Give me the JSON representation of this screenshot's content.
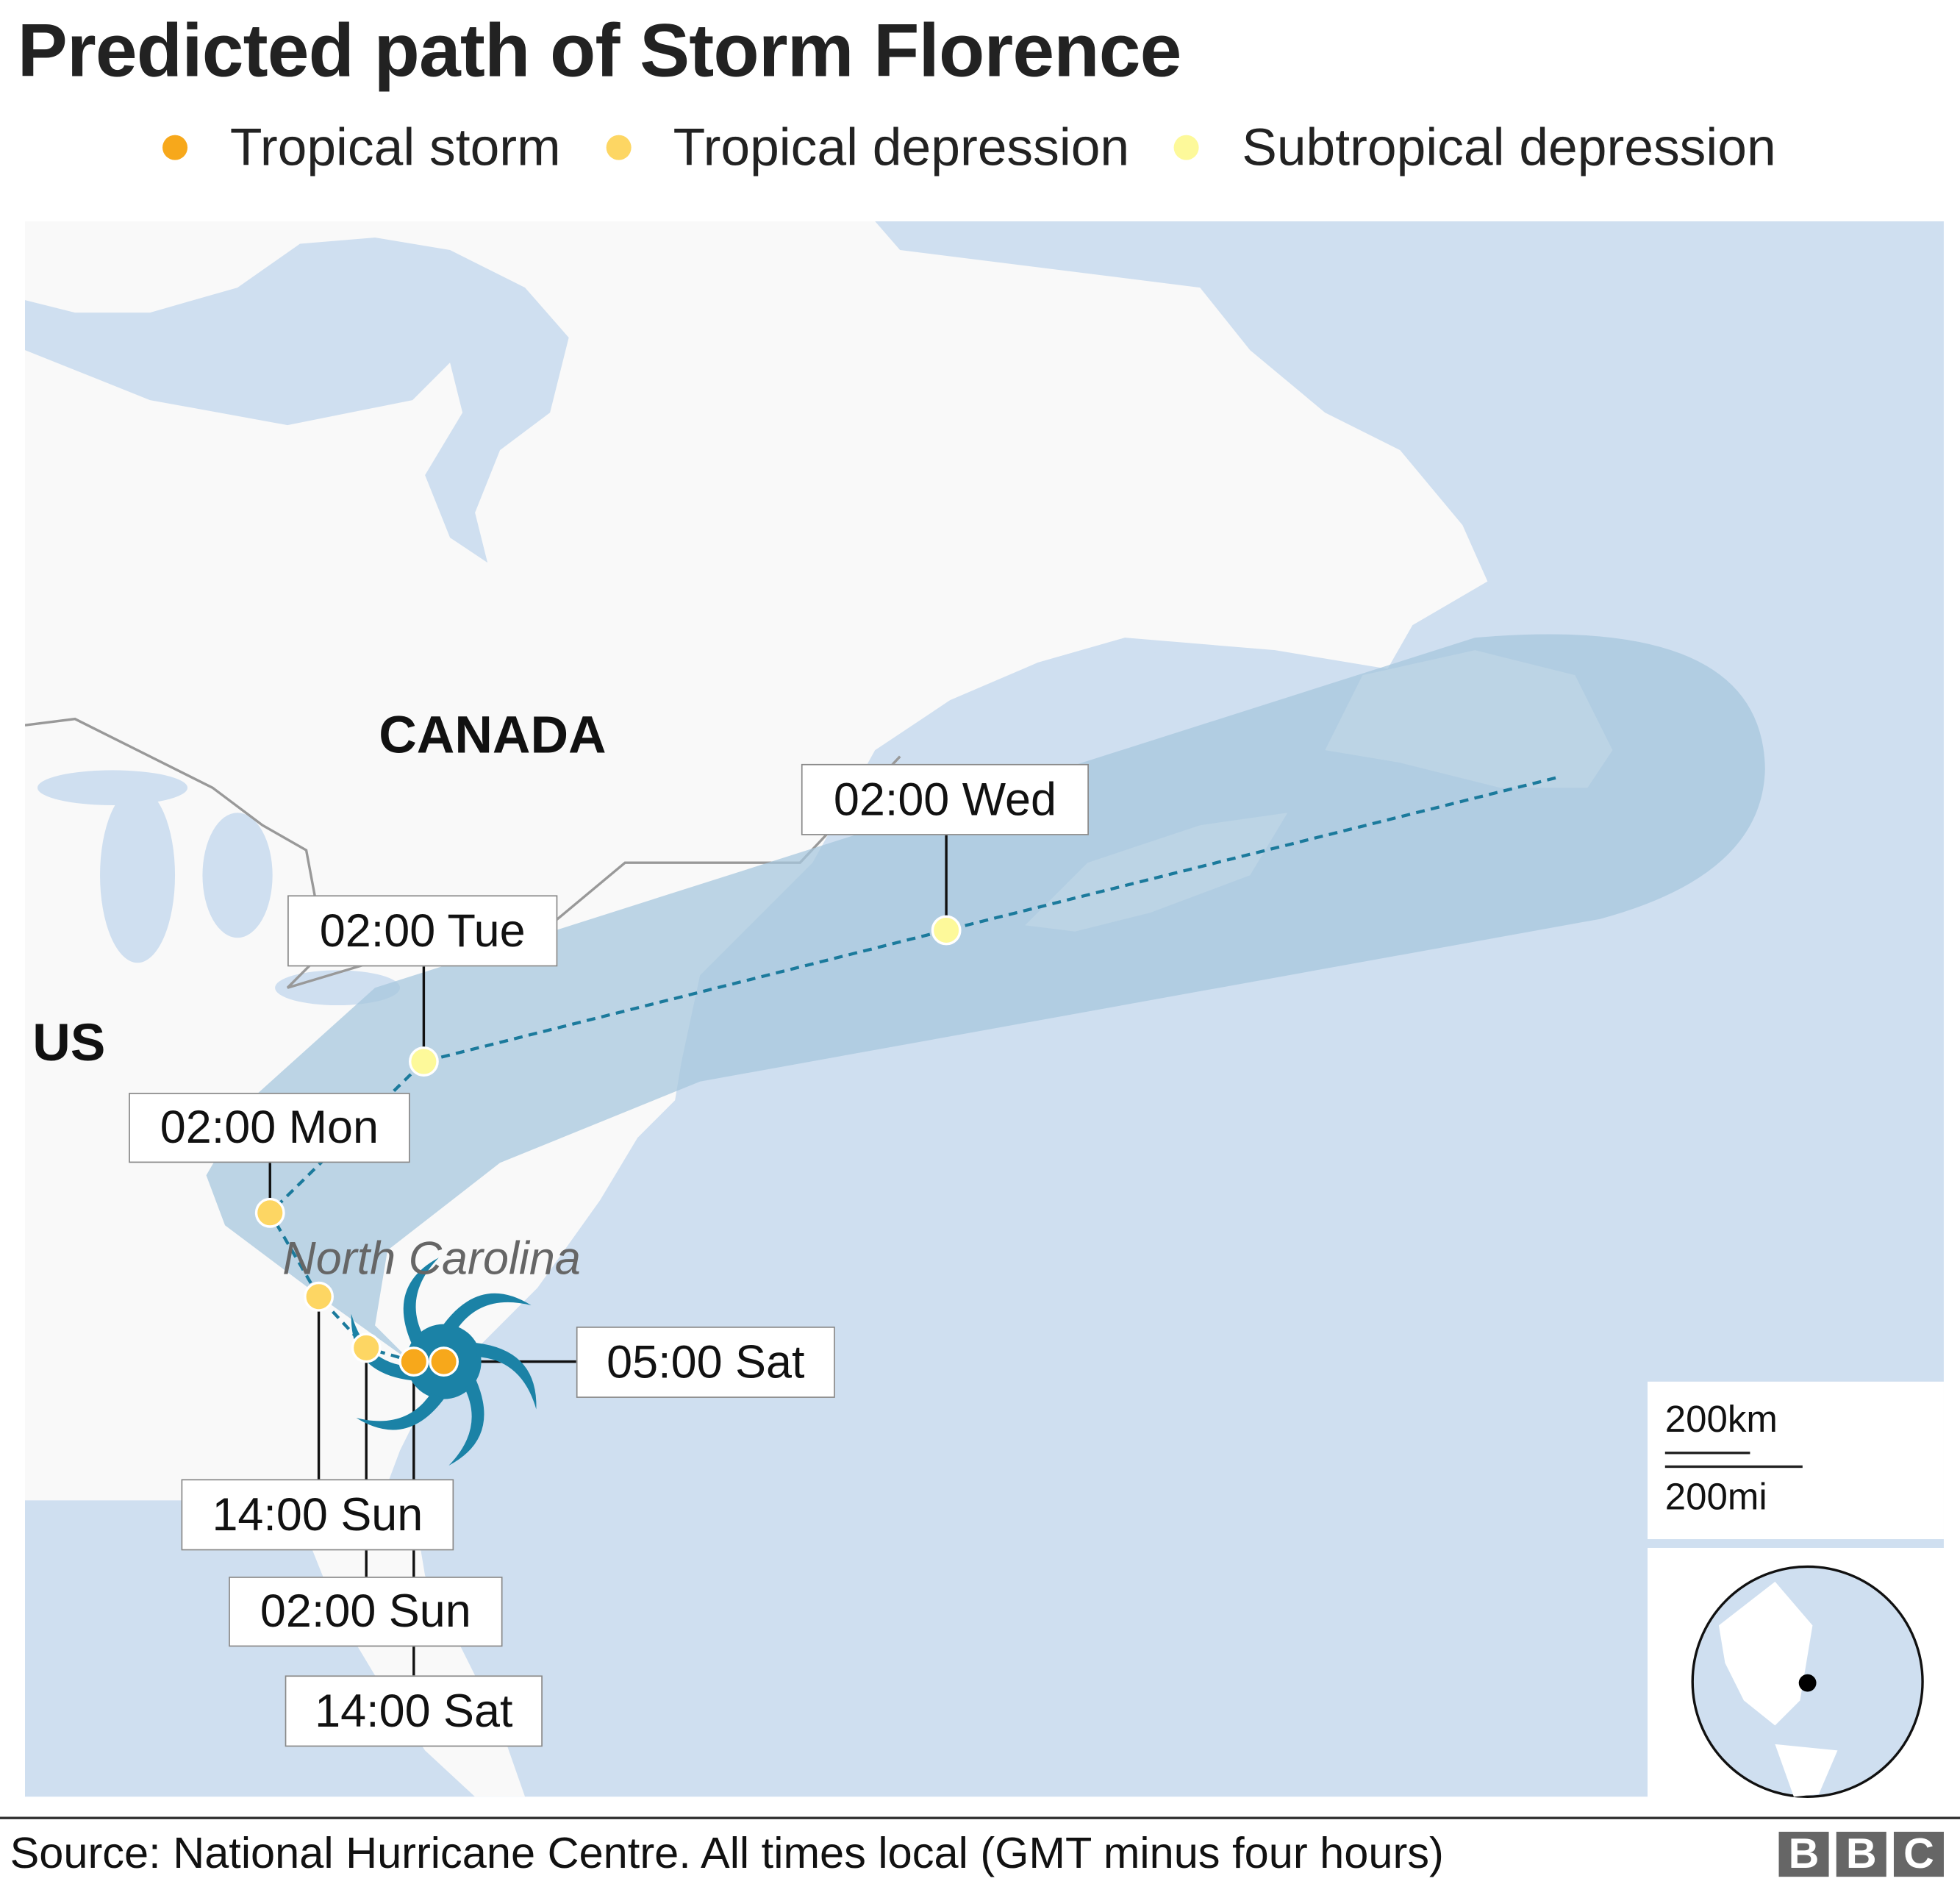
{
  "title": "Predicted path of Storm Florence",
  "legend": [
    {
      "label": "Tropical storm",
      "color": "#f7a81b"
    },
    {
      "label": "Tropical depression",
      "color": "#fdd663"
    },
    {
      "label": "Subtropical depression",
      "color": "#fdf99a"
    }
  ],
  "map": {
    "countries": {
      "canada": "CANADA",
      "us": "US"
    },
    "state": "North Carolina",
    "colors": {
      "ocean": "#cfdff0",
      "land": "#f9f9f9",
      "cone": "#a7c7dd",
      "storm_icon": "#1b82a6",
      "track": "#1b7a9c"
    },
    "track_points": [
      {
        "time": "05:00 Sat",
        "status": "Tropical storm"
      },
      {
        "time": "14:00 Sat",
        "status": "Tropical storm"
      },
      {
        "time": "02:00 Sun",
        "status": "Tropical depression"
      },
      {
        "time": "14:00 Sun",
        "status": "Tropical depression"
      },
      {
        "time": "02:00 Mon",
        "status": "Tropical depression"
      },
      {
        "time": "02:00 Tue",
        "status": "Subtropical depression"
      },
      {
        "time": "02:00 Wed",
        "status": "Subtropical depression"
      }
    ],
    "current_position_icon": "hurricane-icon"
  },
  "scale_bar": {
    "km": "200km",
    "mi": "200mi"
  },
  "locator": {
    "icon": "globe-locator"
  },
  "footer": {
    "source": "Source: National Hurricane Centre. All times local (GMT minus four hours)",
    "logo": "BBC"
  }
}
